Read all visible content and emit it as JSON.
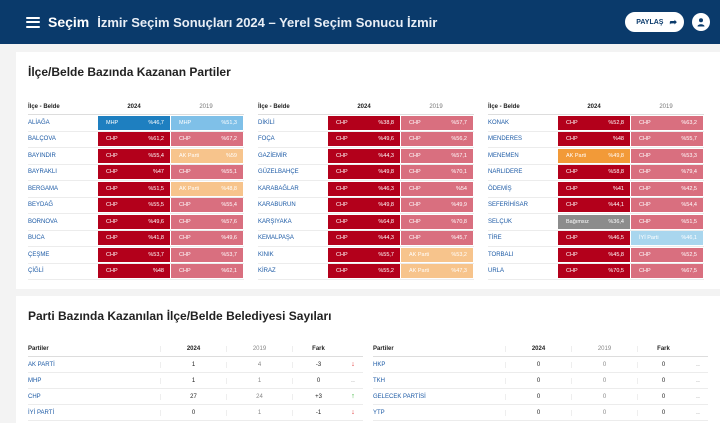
{
  "header": {
    "brand": "Seçim",
    "title": "İzmir Seçim Sonuçları 2024 – Yerel Seçim Sonucu İzmir",
    "share_label": "PAYLAŞ"
  },
  "section1": {
    "title": "İlçe/Belde Bazında Kazanan Partiler",
    "col_name": "İlçe - Belde",
    "col_2024": "2024",
    "col_2019": "2019"
  },
  "colors": {
    "CHP": "#b3001b",
    "CHP19": "#d96f7f",
    "MHP": "#1e7fc0",
    "MHP19": "#7fc0e8",
    "AKP": "#f29a38",
    "AKP19": "#f7c48c",
    "IND": "#8c8c8c",
    "IYI19": "#a9d6ee"
  },
  "districts": [
    [
      {
        "name": "ALİAĞA",
        "p24": "MHP",
        "v24": "%46,7",
        "k24": "MHP",
        "p19": "MHP",
        "v19": "%51,3",
        "k19": "MHP19"
      },
      {
        "name": "BALÇOVA",
        "p24": "CHP",
        "v24": "%61,2",
        "k24": "CHP",
        "p19": "CHP",
        "v19": "%67,2",
        "k19": "CHP19"
      },
      {
        "name": "BAYINDIR",
        "p24": "CHP",
        "v24": "%55,4",
        "k24": "CHP",
        "p19": "AK Parti",
        "v19": "%59",
        "k19": "AKP19"
      },
      {
        "name": "BAYRAKLI",
        "p24": "CHP",
        "v24": "%47",
        "k24": "CHP",
        "p19": "CHP",
        "v19": "%55,1",
        "k19": "CHP19"
      },
      {
        "name": "BERGAMA",
        "p24": "CHP",
        "v24": "%51,5",
        "k24": "CHP",
        "p19": "AK Parti",
        "v19": "%48,8",
        "k19": "AKP19"
      },
      {
        "name": "BEYDAĞ",
        "p24": "CHP",
        "v24": "%55,5",
        "k24": "CHP",
        "p19": "CHP",
        "v19": "%55,4",
        "k19": "CHP19"
      },
      {
        "name": "BORNOVA",
        "p24": "CHP",
        "v24": "%49,6",
        "k24": "CHP",
        "p19": "CHP",
        "v19": "%57,6",
        "k19": "CHP19"
      },
      {
        "name": "BUCA",
        "p24": "CHP",
        "v24": "%41,8",
        "k24": "CHP",
        "p19": "CHP",
        "v19": "%49,6",
        "k19": "CHP19"
      },
      {
        "name": "ÇEŞME",
        "p24": "CHP",
        "v24": "%53,7",
        "k24": "CHP",
        "p19": "CHP",
        "v19": "%53,7",
        "k19": "CHP19"
      },
      {
        "name": "ÇİĞLİ",
        "p24": "CHP",
        "v24": "%48",
        "k24": "CHP",
        "p19": "CHP",
        "v19": "%62,1",
        "k19": "CHP19"
      }
    ],
    [
      {
        "name": "DİKİLİ",
        "p24": "CHP",
        "v24": "%38,8",
        "k24": "CHP",
        "p19": "CHP",
        "v19": "%57,7",
        "k19": "CHP19"
      },
      {
        "name": "FOÇA",
        "p24": "CHP",
        "v24": "%49,6",
        "k24": "CHP",
        "p19": "CHP",
        "v19": "%56,2",
        "k19": "CHP19"
      },
      {
        "name": "GAZİEMİR",
        "p24": "CHP",
        "v24": "%44,3",
        "k24": "CHP",
        "p19": "CHP",
        "v19": "%57,1",
        "k19": "CHP19"
      },
      {
        "name": "GÜZELBAHÇE",
        "p24": "CHP",
        "v24": "%49,8",
        "k24": "CHP",
        "p19": "CHP",
        "v19": "%70,1",
        "k19": "CHP19"
      },
      {
        "name": "KARABAĞLAR",
        "p24": "CHP",
        "v24": "%46,3",
        "k24": "CHP",
        "p19": "CHP",
        "v19": "%54",
        "k19": "CHP19"
      },
      {
        "name": "KARABURUN",
        "p24": "CHP",
        "v24": "%49,8",
        "k24": "CHP",
        "p19": "CHP",
        "v19": "%49,9",
        "k19": "CHP19"
      },
      {
        "name": "KARŞIYAKA",
        "p24": "CHP",
        "v24": "%64,8",
        "k24": "CHP",
        "p19": "CHP",
        "v19": "%70,8",
        "k19": "CHP19"
      },
      {
        "name": "KEMALPAŞA",
        "p24": "CHP",
        "v24": "%44,3",
        "k24": "CHP",
        "p19": "CHP",
        "v19": "%45,7",
        "k19": "CHP19"
      },
      {
        "name": "KINIK",
        "p24": "CHP",
        "v24": "%55,7",
        "k24": "CHP",
        "p19": "AK Parti",
        "v19": "%53,2",
        "k19": "AKP19"
      },
      {
        "name": "KİRAZ",
        "p24": "CHP",
        "v24": "%55,2",
        "k24": "CHP",
        "p19": "AK Parti",
        "v19": "%47,3",
        "k19": "AKP19"
      }
    ],
    [
      {
        "name": "KONAK",
        "p24": "CHP",
        "v24": "%52,8",
        "k24": "CHP",
        "p19": "CHP",
        "v19": "%63,2",
        "k19": "CHP19"
      },
      {
        "name": "MENDERES",
        "p24": "CHP",
        "v24": "%48",
        "k24": "CHP",
        "p19": "CHP",
        "v19": "%55,7",
        "k19": "CHP19"
      },
      {
        "name": "MENEMEN",
        "p24": "AK Parti",
        "v24": "%49,8",
        "k24": "AKP",
        "p19": "CHP",
        "v19": "%53,3",
        "k19": "CHP19"
      },
      {
        "name": "NARLIDERE",
        "p24": "CHP",
        "v24": "%58,8",
        "k24": "CHP",
        "p19": "CHP",
        "v19": "%79,4",
        "k19": "CHP19"
      },
      {
        "name": "ÖDEMİŞ",
        "p24": "CHP",
        "v24": "%41",
        "k24": "CHP",
        "p19": "CHP",
        "v19": "%42,5",
        "k19": "CHP19"
      },
      {
        "name": "SEFERİHİSAR",
        "p24": "CHP",
        "v24": "%44,1",
        "k24": "CHP",
        "p19": "CHP",
        "v19": "%54,4",
        "k19": "CHP19"
      },
      {
        "name": "SELÇUK",
        "p24": "Bağımsız",
        "v24": "%36,4",
        "k24": "IND",
        "p19": "CHP",
        "v19": "%51,5",
        "k19": "CHP19"
      },
      {
        "name": "TİRE",
        "p24": "CHP",
        "v24": "%46,5",
        "k24": "CHP",
        "p19": "İYİ Parti",
        "v19": "%46,1",
        "k19": "IYI19"
      },
      {
        "name": "TORBALI",
        "p24": "CHP",
        "v24": "%45,8",
        "k24": "CHP",
        "p19": "CHP",
        "v19": "%52,5",
        "k19": "CHP19"
      },
      {
        "name": "URLA",
        "p24": "CHP",
        "v24": "%70,5",
        "k24": "CHP",
        "p19": "CHP",
        "v19": "%67,5",
        "k19": "CHP19"
      }
    ]
  ],
  "section2": {
    "title": "Parti Bazında Kazanılan İlçe/Belde Belediyesi Sayıları",
    "col_party": "Partiler",
    "col_2024": "2024",
    "col_2019": "2019",
    "col_diff": "Fark"
  },
  "parties": [
    [
      {
        "name": "AK PARTİ",
        "v24": "1",
        "v19": "4",
        "diff": "-3",
        "trend": "↓",
        "tc": "down"
      },
      {
        "name": "MHP",
        "v24": "1",
        "v19": "1",
        "diff": "0",
        "trend": "..",
        "tc": "flat"
      },
      {
        "name": "CHP",
        "v24": "27",
        "v19": "24",
        "diff": "+3",
        "trend": "↑",
        "tc": "up"
      },
      {
        "name": "İYİ PARTİ",
        "v24": "0",
        "v19": "1",
        "diff": "-1",
        "trend": "↓",
        "tc": "down"
      }
    ],
    [
      {
        "name": "HKP",
        "v24": "0",
        "v19": "0",
        "diff": "0",
        "trend": "..",
        "tc": "flat"
      },
      {
        "name": "TKH",
        "v24": "0",
        "v19": "0",
        "diff": "0",
        "trend": "..",
        "tc": "flat"
      },
      {
        "name": "GELECEK PARTİSİ",
        "v24": "0",
        "v19": "0",
        "diff": "0",
        "trend": "..",
        "tc": "flat"
      },
      {
        "name": "YTP",
        "v24": "0",
        "v19": "0",
        "diff": "0",
        "trend": "..",
        "tc": "flat"
      }
    ]
  ]
}
